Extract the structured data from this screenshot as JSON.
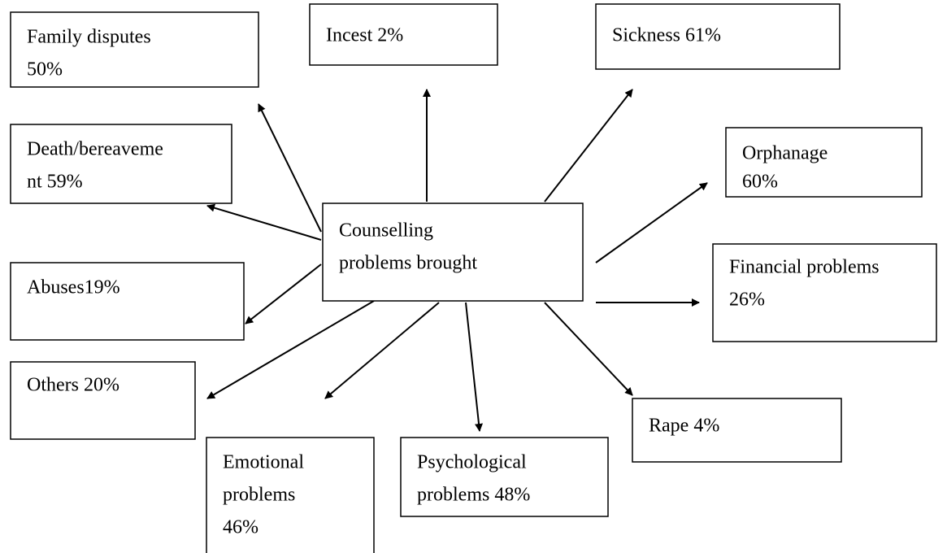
{
  "center": {
    "lines": [
      "Counselling",
      "problems brought"
    ]
  },
  "nodes": [
    {
      "lines": [
        "Family disputes",
        "50%"
      ]
    },
    {
      "lines": [
        "Incest 2%"
      ]
    },
    {
      "lines": [
        "Sickness 61%"
      ]
    },
    {
      "lines": [
        "Death/bereaveme",
        "nt 59%"
      ]
    },
    {
      "lines": [
        "Orphanage",
        "60%"
      ]
    },
    {
      "lines": [
        "Abuses19%"
      ]
    },
    {
      "lines": [
        "Financial problems",
        "26%"
      ]
    },
    {
      "lines": [
        "Others 20%"
      ]
    },
    {
      "lines": [
        "Rape 4%"
      ]
    },
    {
      "lines": [
        "Emotional",
        "problems",
        "46%"
      ]
    },
    {
      "lines": [
        "Psychological",
        "problems 48%"
      ]
    }
  ]
}
